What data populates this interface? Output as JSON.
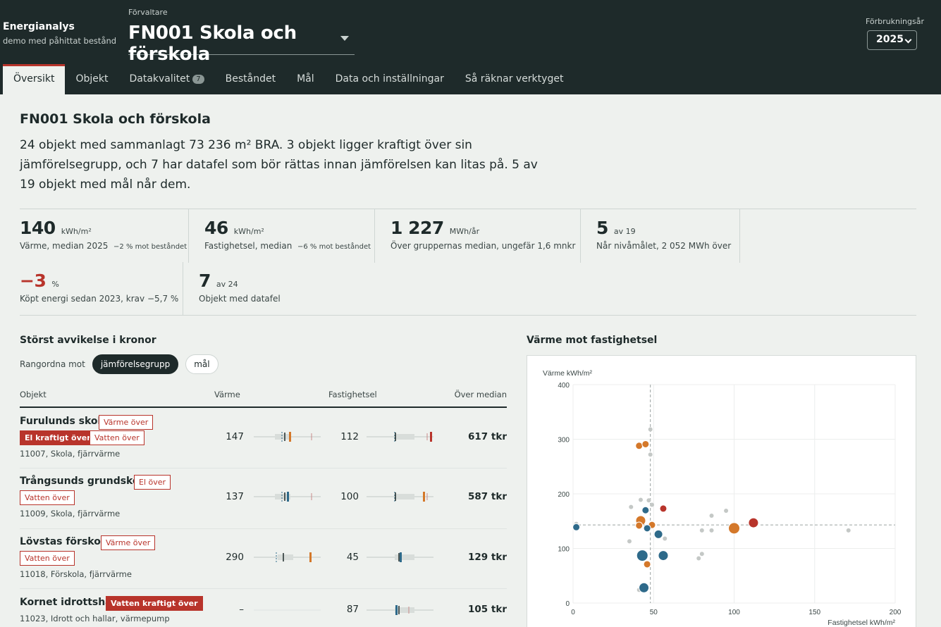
{
  "brand": {
    "name": "Energianalys",
    "subtitle": "demo med påhittat bestånd"
  },
  "manager": {
    "label": "Förvaltare",
    "value": "FN001 Skola och förskola"
  },
  "year": {
    "label": "Förbrukningsår",
    "value": "2025"
  },
  "tabs": [
    {
      "label": "Översikt",
      "active": true
    },
    {
      "label": "Objekt"
    },
    {
      "label": "Datakvalitet",
      "badge": "7"
    },
    {
      "label": "Beståndet"
    },
    {
      "label": "Mål"
    },
    {
      "label": "Data och inställningar"
    },
    {
      "label": "Så räknar verktyget"
    }
  ],
  "page": {
    "title": "FN001 Skola och förskola",
    "summary": "24 objekt med sammanlagt 73 236 m² BRA. 3 objekt ligger kraftigt över sin jämförelsegrupp, och 7 har datafel som bör rättas innan jämförelsen kan litas på. 5 av 19 objekt med mål når dem."
  },
  "kpis": [
    {
      "num": "140",
      "unit": "kWh/m²",
      "desc": "Värme, median 2025",
      "note": "−2 % mot beståndet"
    },
    {
      "num": "46",
      "unit": "kWh/m²",
      "desc": "Fastighetsel, median",
      "note": "−6 % mot beståndet"
    },
    {
      "num": "1 227",
      "unit": "MWh/år",
      "desc": "Över gruppernas median, ungefär 1,6 mnkr",
      "note": ""
    },
    {
      "num": "5",
      "unit": "av 19",
      "desc": "Når nivåmålet, 2 052 MWh över",
      "note": ""
    },
    {
      "num": "−3",
      "unit": "%",
      "desc": "Köpt energi sedan 2023, krav −5,7 %",
      "note": "",
      "color": "#b8342b"
    },
    {
      "num": "7",
      "unit": "av 24",
      "desc": "Objekt med datafel",
      "note": ""
    }
  ],
  "deviation": {
    "title": "Störst avvikelse i kronor",
    "rank_label": "Rangordna mot",
    "options": [
      "jämförelsegrupp",
      "mål"
    ],
    "selected": "jämförelsegrupp",
    "columns": {
      "object": "Objekt",
      "heat": "Värme",
      "elec": "Fastighetsel",
      "over": "Över median"
    },
    "rows": [
      {
        "name": "Furulunds skola",
        "tags": [
          {
            "label": "Värme över",
            "solid": false
          },
          {
            "label": "El kraftigt över",
            "solid": true
          },
          {
            "label": "Vatten över",
            "solid": false
          }
        ],
        "meta": "11007, Skola, fjärrvärme",
        "heat": "147",
        "elec": "112",
        "over": "617 tkr",
        "heat_color": "#d4782a",
        "elec_color": "#b8342b"
      },
      {
        "name": "Trångsunds grundskola",
        "tags": [
          {
            "label": "El över",
            "solid": false
          },
          {
            "label": "Vatten över",
            "solid": false
          }
        ],
        "meta": "11009, Skola, fjärrvärme",
        "heat": "137",
        "elec": "100",
        "over": "587 tkr",
        "heat_color": "#2e6a8a",
        "elec_color": "#d4782a"
      },
      {
        "name": "Lövstas förskola",
        "tags": [
          {
            "label": "Värme över",
            "solid": false
          },
          {
            "label": "Vatten över",
            "solid": false
          }
        ],
        "meta": "11018, Förskola, fjärrvärme",
        "heat": "290",
        "elec": "45",
        "over": "129 tkr",
        "heat_color": "#d4782a",
        "elec_color": "#2e6a8a"
      },
      {
        "name": "Kornet idrottshall",
        "tags": [
          {
            "label": "Vatten kraftigt över",
            "solid": true
          }
        ],
        "meta": "11023, Idrott och hallar, värmepump",
        "heat": "–",
        "elec": "87",
        "over": "105 tkr",
        "heat_color": "",
        "elec_color": "#2e6a8a"
      }
    ]
  },
  "scatter": {
    "title": "Värme mot fastighetsel",
    "colors": {
      "blue": "#2e6a8a",
      "orange": "#d4782a",
      "red": "#b8342b",
      "grey": "#c4c8c6"
    },
    "chart_data": {
      "type": "scatter",
      "xlabel": "Fastighetsel kWh/m²",
      "ylabel": "Värme kWh/m²",
      "xlim": [
        0,
        200
      ],
      "ylim": [
        0,
        400
      ],
      "xticks": [
        0,
        50,
        100,
        150,
        200
      ],
      "yticks": [
        0,
        100,
        200,
        300,
        400
      ],
      "median_x": 48,
      "median_y": 143,
      "points": [
        {
          "x": 48,
          "y": 318,
          "c": "grey",
          "s": 3
        },
        {
          "x": 48,
          "y": 272,
          "c": "grey",
          "s": 3
        },
        {
          "x": 41,
          "y": 288,
          "c": "orange",
          "s": 5
        },
        {
          "x": 45,
          "y": 291,
          "c": "orange",
          "s": 5
        },
        {
          "x": 36,
          "y": 176,
          "c": "grey",
          "s": 3
        },
        {
          "x": 42,
          "y": 189,
          "c": "grey",
          "s": 3
        },
        {
          "x": 47,
          "y": 188,
          "c": "grey",
          "s": 3
        },
        {
          "x": 49,
          "y": 180,
          "c": "grey",
          "s": 3
        },
        {
          "x": 45,
          "y": 170,
          "c": "blue",
          "s": 5
        },
        {
          "x": 56,
          "y": 173,
          "c": "red",
          "s": 5
        },
        {
          "x": 95,
          "y": 169,
          "c": "grey",
          "s": 3
        },
        {
          "x": 86,
          "y": 160,
          "c": "grey",
          "s": 3
        },
        {
          "x": 2,
          "y": 145,
          "c": "grey",
          "s": 3
        },
        {
          "x": 2,
          "y": 139,
          "c": "blue",
          "s": 5
        },
        {
          "x": 42,
          "y": 151,
          "c": "orange",
          "s": 7
        },
        {
          "x": 41,
          "y": 142,
          "c": "orange",
          "s": 5
        },
        {
          "x": 49,
          "y": 143,
          "c": "orange",
          "s": 5
        },
        {
          "x": 46,
          "y": 137,
          "c": "blue",
          "s": 5
        },
        {
          "x": 53,
          "y": 126,
          "c": "blue",
          "s": 6
        },
        {
          "x": 57,
          "y": 118,
          "c": "grey",
          "s": 3
        },
        {
          "x": 35,
          "y": 113,
          "c": "grey",
          "s": 3
        },
        {
          "x": 80,
          "y": 133,
          "c": "grey",
          "s": 3
        },
        {
          "x": 86,
          "y": 133,
          "c": "grey",
          "s": 3
        },
        {
          "x": 100,
          "y": 137,
          "c": "orange",
          "s": 8
        },
        {
          "x": 112,
          "y": 147,
          "c": "red",
          "s": 7
        },
        {
          "x": 171,
          "y": 133,
          "c": "grey",
          "s": 3
        },
        {
          "x": 43,
          "y": 87,
          "c": "blue",
          "s": 8
        },
        {
          "x": 56,
          "y": 87,
          "c": "blue",
          "s": 7
        },
        {
          "x": 80,
          "y": 90,
          "c": "grey",
          "s": 3
        },
        {
          "x": 78,
          "y": 82,
          "c": "grey",
          "s": 3
        },
        {
          "x": 46,
          "y": 71,
          "c": "orange",
          "s": 5
        },
        {
          "x": 41,
          "y": 24,
          "c": "grey",
          "s": 3
        },
        {
          "x": 44,
          "y": 28,
          "c": "blue",
          "s": 7
        }
      ]
    }
  }
}
